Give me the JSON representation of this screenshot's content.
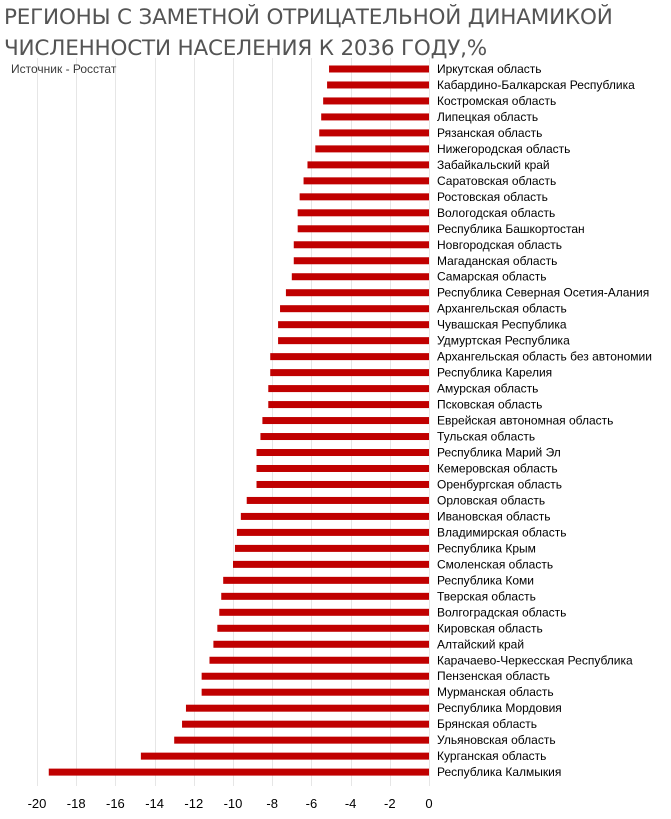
{
  "header": {
    "title_line1": "РЕГИОНЫ С ЗАМЕТНОЙ ОТРИЦАТЕЛЬНОЙ ДИНАМИКОЙ",
    "title_line2": "ЧИСЛЕННОСТИ НАСЕЛЕНИЯ К 2036 ГОДУ,%",
    "source": "Источник - Росстат"
  },
  "chart_data": {
    "type": "bar",
    "orientation": "horizontal",
    "title": "РЕГИОНЫ С ЗАМЕТНОЙ ОТРИЦАТЕЛЬНОЙ ДИНАМИКОЙ ЧИСЛЕННОСТИ НАСЕЛЕНИЯ К 2036 ГОДУ,%",
    "xlim": [
      -20,
      0
    ],
    "xticks": [
      -20,
      -18,
      -16,
      -14,
      -12,
      -10,
      -8,
      -6,
      -4,
      -2,
      0
    ],
    "grid": true,
    "bar_color": "#c00000",
    "categories": [
      "Иркутская область",
      "Кабардино-Балкарская Республика",
      "Костромская область",
      "Липецкая область",
      "Рязанская область",
      "Нижегородская область",
      "Забайкальский край",
      "Саратовская область",
      "Ростовская область",
      "Вологодская область",
      "Республика Башкортостан",
      "Новгородская область",
      "Магаданская область",
      "Самарская область",
      "Республика Северная Осетия-Алания",
      "Архангельская область",
      "Чувашская Республика",
      "Удмуртская Республика",
      "Архангельская область без автономии",
      "Республика Карелия",
      "Амурская область",
      "Псковская область",
      "Еврейская автономная область",
      "Тульская область",
      "Республика Марий Эл",
      "Кемеровская область",
      "Оренбургская область",
      "Орловская область",
      "Ивановская область",
      "Владимирская область",
      "Республика Крым",
      "Смоленская область",
      "Республика Коми",
      "Тверская область",
      "Волгоградская область",
      "Кировская область",
      "Алтайский край",
      "Карачаево-Черкесская Республика",
      "Пензенская область",
      "Мурманская область",
      "Республика Мордовия",
      "Брянская область",
      "Ульяновская область",
      "Курганская область",
      "Республика Калмыкия"
    ],
    "values": [
      -5.1,
      -5.2,
      -5.4,
      -5.5,
      -5.6,
      -5.8,
      -6.2,
      -6.4,
      -6.6,
      -6.7,
      -6.7,
      -6.9,
      -6.9,
      -7.0,
      -7.3,
      -7.6,
      -7.7,
      -7.7,
      -8.1,
      -8.1,
      -8.2,
      -8.2,
      -8.5,
      -8.6,
      -8.8,
      -8.8,
      -8.8,
      -9.3,
      -9.6,
      -9.8,
      -9.9,
      -10.0,
      -10.5,
      -10.6,
      -10.7,
      -10.8,
      -11.0,
      -11.2,
      -11.6,
      -11.6,
      -12.4,
      -12.6,
      -13.0,
      -14.7,
      -19.4
    ]
  }
}
